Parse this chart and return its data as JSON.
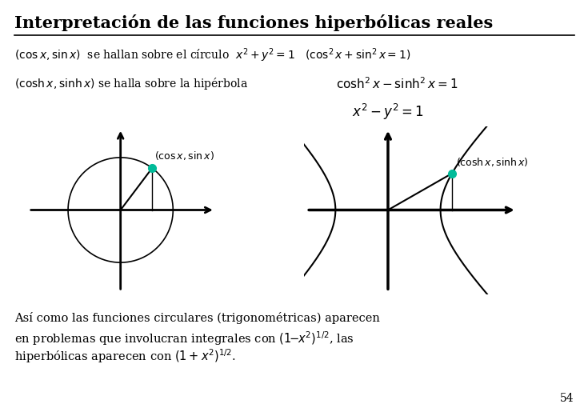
{
  "title": "Interpretación de las funciones hiperbólicas reales",
  "background_color": "#ffffff",
  "title_fontsize": 15,
  "page_number": "54",
  "dot_color": "#00bb99"
}
